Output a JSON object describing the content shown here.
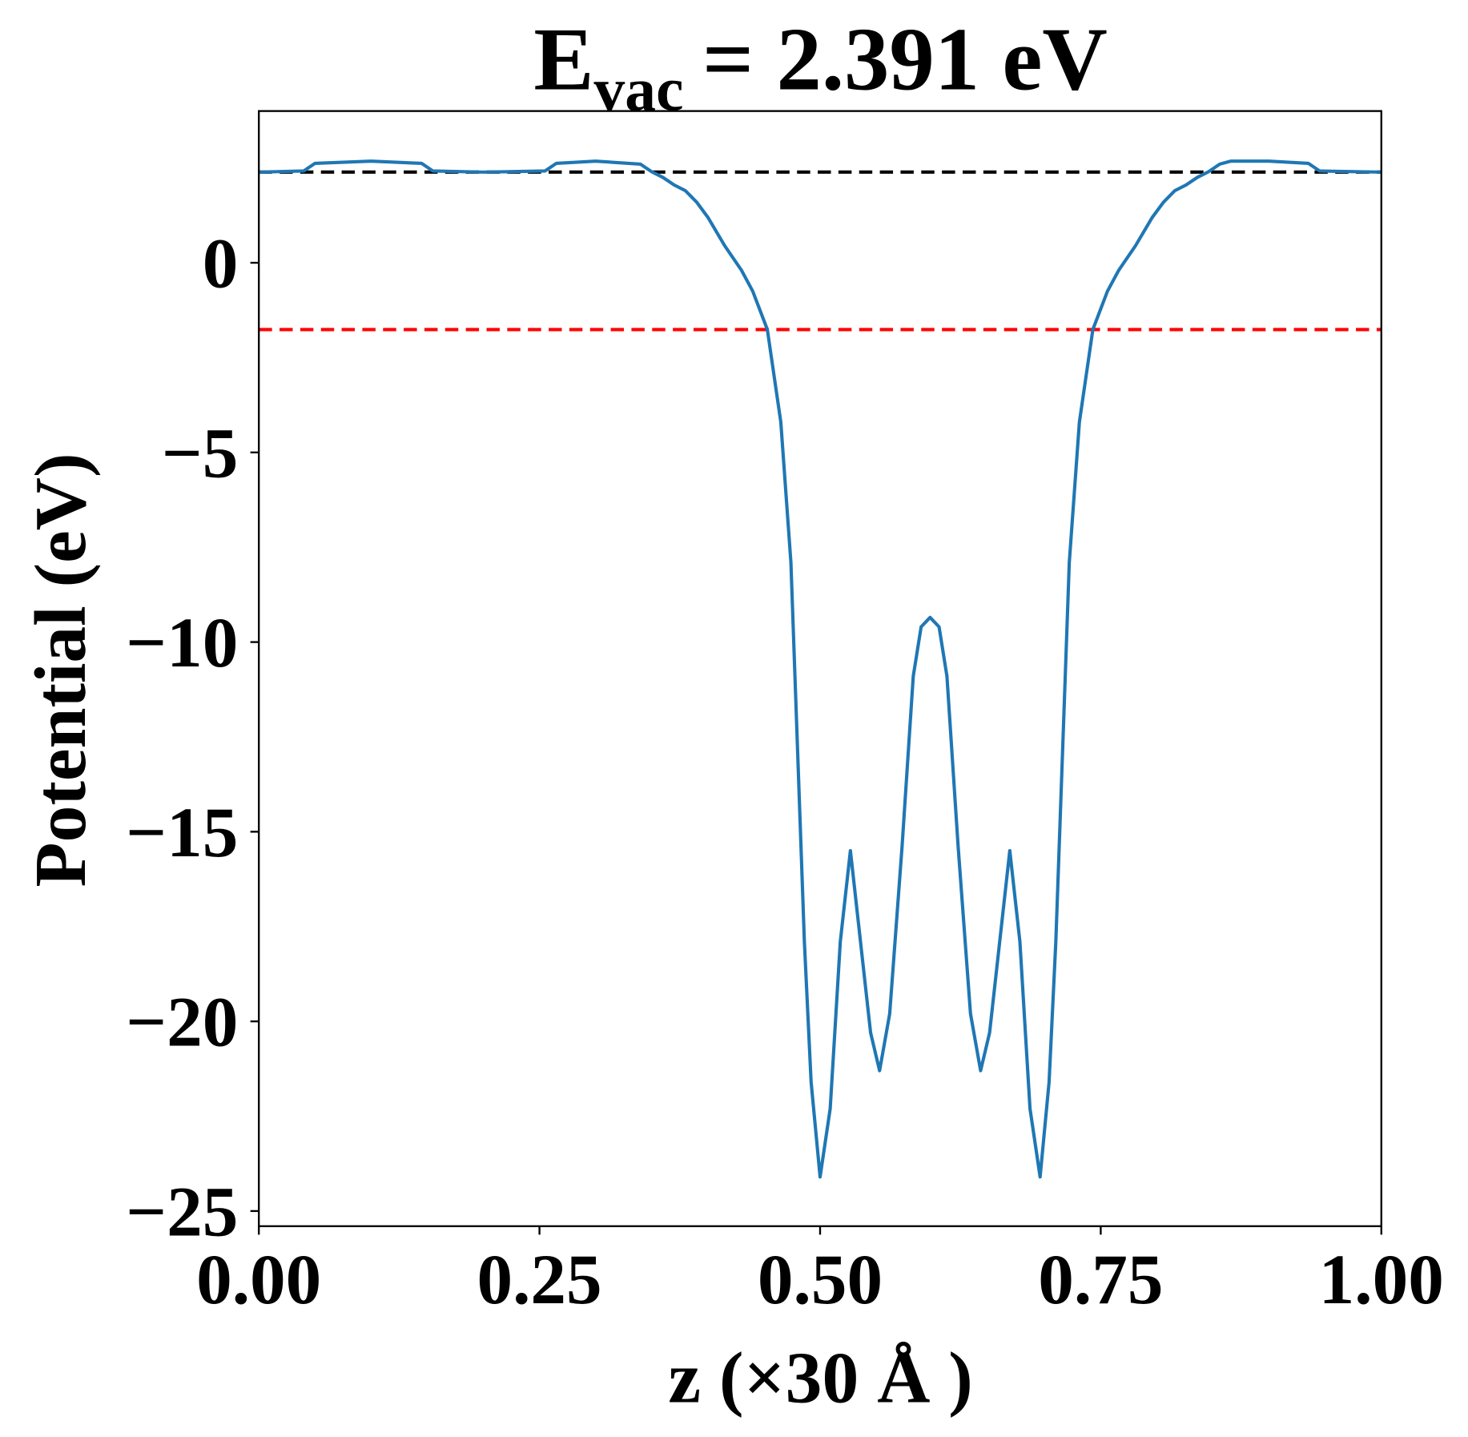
{
  "chart_data": {
    "type": "line",
    "title": {
      "main": "E",
      "sub": "vac",
      "rest": "= 2.391 eV"
    },
    "xlabel": "z (×30 Å )",
    "ylabel": "Potential (eV)",
    "xlim": [
      0,
      1
    ],
    "ylim": [
      -25.4,
      4.0
    ],
    "xticks": [
      {
        "value": 0,
        "label": "0.00"
      },
      {
        "value": 0.25,
        "label": "0.25"
      },
      {
        "value": 0.5,
        "label": "0.50"
      },
      {
        "value": 0.75,
        "label": "0.75"
      },
      {
        "value": 1,
        "label": "1.00"
      }
    ],
    "yticks": [
      {
        "value": -25,
        "label": "−25"
      },
      {
        "value": -20,
        "label": "−20"
      },
      {
        "value": -15,
        "label": "−15"
      },
      {
        "value": -10,
        "label": "−10"
      },
      {
        "value": -5,
        "label": "−5"
      },
      0
    ],
    "hlines": [
      {
        "value": 2.391,
        "color": "#000000"
      },
      {
        "value": -1.76,
        "color": "#ff0000"
      }
    ],
    "series": [
      {
        "color": "#1f77b4",
        "x": [
          0,
          0.04,
          0.05,
          0.1,
          0.145,
          0.155,
          0.2,
          0.255,
          0.265,
          0.3,
          0.34,
          0.35,
          0.36,
          0.37,
          0.38,
          0.39,
          0.4,
          0.415,
          0.43,
          0.44,
          0.453,
          0.465,
          0.474,
          0.48,
          0.486,
          0.492,
          0.5,
          0.509,
          0.518,
          0.527,
          0.536,
          0.545,
          0.553,
          0.562,
          0.573,
          0.583,
          0.59,
          0.598,
          0.606,
          0.613,
          0.623,
          0.634,
          0.643,
          0.651,
          0.66,
          0.669,
          0.678,
          0.687,
          0.696,
          0.704,
          0.71,
          0.716,
          0.722,
          0.731,
          0.743,
          0.756,
          0.766,
          0.781,
          0.796,
          0.806,
          0.816,
          0.826,
          0.836,
          0.846,
          0.856,
          0.866,
          0.9,
          0.935,
          0.945,
          1
        ],
        "values": [
          2.39,
          2.42,
          2.62,
          2.68,
          2.62,
          2.42,
          2.39,
          2.42,
          2.62,
          2.68,
          2.6,
          2.4,
          2.25,
          2.05,
          1.9,
          1.6,
          1.2,
          0.45,
          -0.2,
          -0.75,
          -1.76,
          -4.2,
          -7.9,
          -12.9,
          -17.9,
          -21.6,
          -24.1,
          -22.3,
          -17.9,
          -15.5,
          -17.9,
          -20.3,
          -21.3,
          -19.8,
          -15.4,
          -10.9,
          -9.6,
          -9.35,
          -9.6,
          -10.9,
          -15.4,
          -19.8,
          -21.3,
          -20.3,
          -17.9,
          -15.5,
          -17.9,
          -22.3,
          -24.1,
          -21.6,
          -17.9,
          -12.9,
          -7.9,
          -4.2,
          -1.76,
          -0.75,
          -0.2,
          0.45,
          1.2,
          1.6,
          1.9,
          2.05,
          2.25,
          2.4,
          2.6,
          2.68,
          2.68,
          2.62,
          2.42,
          2.39
        ]
      }
    ]
  }
}
